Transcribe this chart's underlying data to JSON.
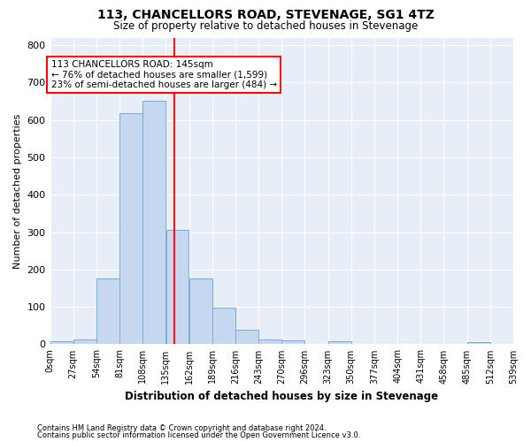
{
  "title": "113, CHANCELLORS ROAD, STEVENAGE, SG1 4TZ",
  "subtitle": "Size of property relative to detached houses in Stevenage",
  "xlabel": "Distribution of detached houses by size in Stevenage",
  "ylabel": "Number of detached properties",
  "bar_color": "#c5d8ef",
  "bar_edge_color": "#7aadd4",
  "background_color": "#e8eef8",
  "grid_color": "#ffffff",
  "vline_x": 145,
  "vline_color": "red",
  "bin_edges": [
    0,
    27,
    54,
    81,
    108,
    135,
    162,
    189,
    216,
    243,
    270,
    297,
    324,
    351,
    378,
    405,
    432,
    459,
    486,
    513,
    540
  ],
  "bin_labels": [
    "0sqm",
    "27sqm",
    "54sqm",
    "81sqm",
    "108sqm",
    "135sqm",
    "162sqm",
    "189sqm",
    "216sqm",
    "243sqm",
    "270sqm",
    "296sqm",
    "323sqm",
    "350sqm",
    "377sqm",
    "404sqm",
    "431sqm",
    "458sqm",
    "485sqm",
    "512sqm",
    "539sqm"
  ],
  "bar_heights": [
    8,
    13,
    175,
    617,
    650,
    305,
    175,
    97,
    40,
    14,
    10,
    0,
    8,
    0,
    0,
    0,
    0,
    0,
    5,
    0,
    0
  ],
  "annotation_title": "113 CHANCELLORS ROAD: 145sqm",
  "annotation_line1": "← 76% of detached houses are smaller (1,599)",
  "annotation_line2": "23% of semi-detached houses are larger (484) →",
  "annotation_box_color": "white",
  "annotation_box_edge_color": "red",
  "ylim": [
    0,
    820
  ],
  "yticks": [
    0,
    100,
    200,
    300,
    400,
    500,
    600,
    700,
    800
  ],
  "footer1": "Contains HM Land Registry data © Crown copyright and database right 2024.",
  "footer2": "Contains public sector information licensed under the Open Government Licence v3.0."
}
